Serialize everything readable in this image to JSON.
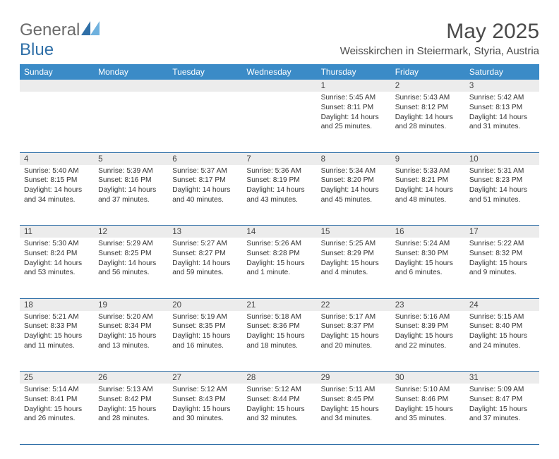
{
  "brand": {
    "part1": "General",
    "part2": "Blue"
  },
  "title": "May 2025",
  "location": "Weisskirchen in Steiermark, Styria, Austria",
  "colors": {
    "header_bg": "#3b8bc7",
    "header_text": "#ffffff",
    "daynum_bg": "#ececec",
    "rule": "#2f6fa7",
    "brand_gray": "#6b6b6b",
    "brand_blue": "#2f6fa7"
  },
  "weekdays": [
    "Sunday",
    "Monday",
    "Tuesday",
    "Wednesday",
    "Thursday",
    "Friday",
    "Saturday"
  ],
  "weeks": [
    [
      null,
      null,
      null,
      null,
      {
        "n": "1",
        "sr": "5:45 AM",
        "ss": "8:11 PM",
        "dl": "14 hours and 25 minutes."
      },
      {
        "n": "2",
        "sr": "5:43 AM",
        "ss": "8:12 PM",
        "dl": "14 hours and 28 minutes."
      },
      {
        "n": "3",
        "sr": "5:42 AM",
        "ss": "8:13 PM",
        "dl": "14 hours and 31 minutes."
      }
    ],
    [
      {
        "n": "4",
        "sr": "5:40 AM",
        "ss": "8:15 PM",
        "dl": "14 hours and 34 minutes."
      },
      {
        "n": "5",
        "sr": "5:39 AM",
        "ss": "8:16 PM",
        "dl": "14 hours and 37 minutes."
      },
      {
        "n": "6",
        "sr": "5:37 AM",
        "ss": "8:17 PM",
        "dl": "14 hours and 40 minutes."
      },
      {
        "n": "7",
        "sr": "5:36 AM",
        "ss": "8:19 PM",
        "dl": "14 hours and 43 minutes."
      },
      {
        "n": "8",
        "sr": "5:34 AM",
        "ss": "8:20 PM",
        "dl": "14 hours and 45 minutes."
      },
      {
        "n": "9",
        "sr": "5:33 AM",
        "ss": "8:21 PM",
        "dl": "14 hours and 48 minutes."
      },
      {
        "n": "10",
        "sr": "5:31 AM",
        "ss": "8:23 PM",
        "dl": "14 hours and 51 minutes."
      }
    ],
    [
      {
        "n": "11",
        "sr": "5:30 AM",
        "ss": "8:24 PM",
        "dl": "14 hours and 53 minutes."
      },
      {
        "n": "12",
        "sr": "5:29 AM",
        "ss": "8:25 PM",
        "dl": "14 hours and 56 minutes."
      },
      {
        "n": "13",
        "sr": "5:27 AM",
        "ss": "8:27 PM",
        "dl": "14 hours and 59 minutes."
      },
      {
        "n": "14",
        "sr": "5:26 AM",
        "ss": "8:28 PM",
        "dl": "15 hours and 1 minute."
      },
      {
        "n": "15",
        "sr": "5:25 AM",
        "ss": "8:29 PM",
        "dl": "15 hours and 4 minutes."
      },
      {
        "n": "16",
        "sr": "5:24 AM",
        "ss": "8:30 PM",
        "dl": "15 hours and 6 minutes."
      },
      {
        "n": "17",
        "sr": "5:22 AM",
        "ss": "8:32 PM",
        "dl": "15 hours and 9 minutes."
      }
    ],
    [
      {
        "n": "18",
        "sr": "5:21 AM",
        "ss": "8:33 PM",
        "dl": "15 hours and 11 minutes."
      },
      {
        "n": "19",
        "sr": "5:20 AM",
        "ss": "8:34 PM",
        "dl": "15 hours and 13 minutes."
      },
      {
        "n": "20",
        "sr": "5:19 AM",
        "ss": "8:35 PM",
        "dl": "15 hours and 16 minutes."
      },
      {
        "n": "21",
        "sr": "5:18 AM",
        "ss": "8:36 PM",
        "dl": "15 hours and 18 minutes."
      },
      {
        "n": "22",
        "sr": "5:17 AM",
        "ss": "8:37 PM",
        "dl": "15 hours and 20 minutes."
      },
      {
        "n": "23",
        "sr": "5:16 AM",
        "ss": "8:39 PM",
        "dl": "15 hours and 22 minutes."
      },
      {
        "n": "24",
        "sr": "5:15 AM",
        "ss": "8:40 PM",
        "dl": "15 hours and 24 minutes."
      }
    ],
    [
      {
        "n": "25",
        "sr": "5:14 AM",
        "ss": "8:41 PM",
        "dl": "15 hours and 26 minutes."
      },
      {
        "n": "26",
        "sr": "5:13 AM",
        "ss": "8:42 PM",
        "dl": "15 hours and 28 minutes."
      },
      {
        "n": "27",
        "sr": "5:12 AM",
        "ss": "8:43 PM",
        "dl": "15 hours and 30 minutes."
      },
      {
        "n": "28",
        "sr": "5:12 AM",
        "ss": "8:44 PM",
        "dl": "15 hours and 32 minutes."
      },
      {
        "n": "29",
        "sr": "5:11 AM",
        "ss": "8:45 PM",
        "dl": "15 hours and 34 minutes."
      },
      {
        "n": "30",
        "sr": "5:10 AM",
        "ss": "8:46 PM",
        "dl": "15 hours and 35 minutes."
      },
      {
        "n": "31",
        "sr": "5:09 AM",
        "ss": "8:47 PM",
        "dl": "15 hours and 37 minutes."
      }
    ]
  ],
  "labels": {
    "sunrise": "Sunrise: ",
    "sunset": "Sunset: ",
    "daylight": "Daylight: "
  }
}
